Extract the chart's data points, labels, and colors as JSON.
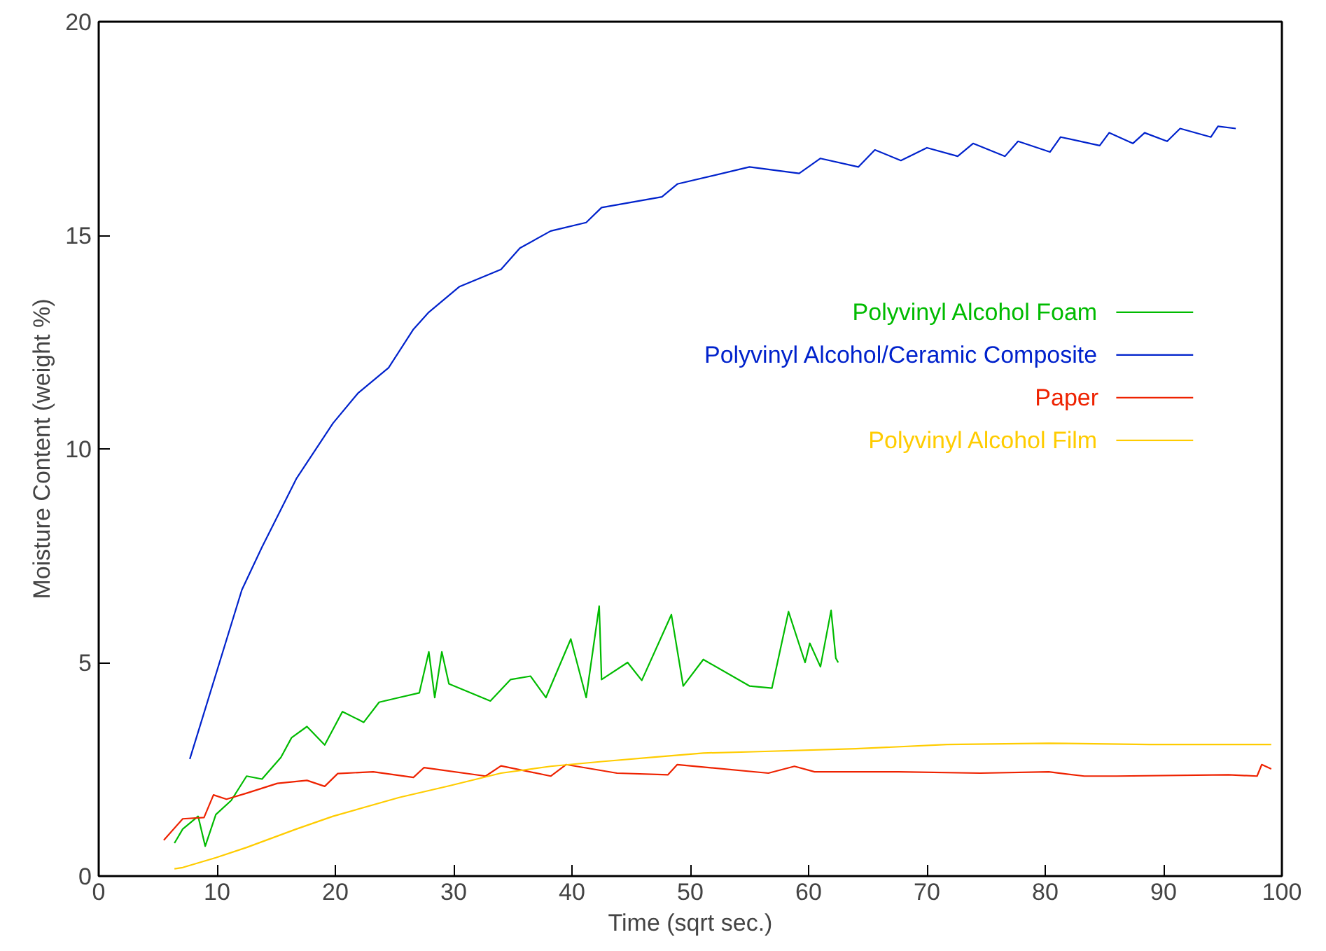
{
  "chart_data": {
    "type": "line",
    "xlabel": "Time (sqrt sec.)",
    "ylabel": "Moisture Content (weight %)",
    "xlim": [
      0,
      100
    ],
    "ylim": [
      0,
      20
    ],
    "xticks": [
      0,
      10,
      20,
      30,
      40,
      50,
      60,
      70,
      80,
      90,
      100
    ],
    "yticks": [
      0,
      5,
      10,
      15,
      20
    ],
    "grid": false,
    "legend": "right",
    "series": [
      {
        "name": "Polyvinyl Alcohol Foam",
        "color": "#00bb00",
        "x": [
          6.4,
          7.1,
          8.4,
          9,
          9.9,
          11.2,
          12.5,
          13.8,
          15.4,
          16.3,
          17.6,
          19.1,
          20.6,
          22.4,
          23.7,
          25.4,
          27.1,
          27.9,
          28.4,
          29,
          29.6,
          33.1,
          34.8,
          36.5,
          37.8,
          39.9,
          41.2,
          42.3,
          42.5,
          44.7,
          45.9,
          48.4,
          49.4,
          51.1,
          55,
          56.9,
          58.3,
          59.7,
          60.1,
          61,
          61.9,
          62.3,
          62.5
        ],
        "values": [
          0.77,
          1.1,
          1.4,
          0.7,
          1.44,
          1.77,
          2.34,
          2.27,
          2.78,
          3.24,
          3.5,
          3.07,
          3.85,
          3.6,
          4.07,
          4.18,
          4.29,
          5.25,
          4.18,
          5.25,
          4.5,
          4.1,
          4.6,
          4.68,
          4.18,
          5.55,
          4.18,
          6.32,
          4.6,
          5.0,
          4.58,
          6.12,
          4.45,
          5.07,
          4.45,
          4.4,
          6.19,
          5.0,
          5.45,
          4.9,
          6.22,
          5.1,
          5.0
        ]
      },
      {
        "name": "Polyvinyl Alcohol/Ceramic Composite",
        "color": "#0022cc",
        "x": [
          7.7,
          12.1,
          13.8,
          16.7,
          19.8,
          21.9,
          24.5,
          26.6,
          27.9,
          30.5,
          34,
          35.6,
          38.2,
          41.2,
          42.5,
          47.6,
          48.9,
          55,
          59.2,
          61,
          64.2,
          65.6,
          67.8,
          70,
          72.6,
          73.9,
          76.6,
          77.7,
          80.4,
          81.3,
          84.6,
          85.4,
          87.4,
          88.4,
          90.3,
          91.4,
          94,
          94.6,
          96.1
        ],
        "values": [
          2.74,
          6.7,
          7.7,
          9.3,
          10.6,
          11.3,
          11.9,
          12.8,
          13.2,
          13.8,
          14.2,
          14.7,
          15.1,
          15.3,
          15.65,
          15.9,
          16.2,
          16.6,
          16.45,
          16.8,
          16.6,
          17.0,
          16.75,
          17.05,
          16.85,
          17.15,
          16.85,
          17.2,
          16.95,
          17.3,
          17.1,
          17.4,
          17.15,
          17.4,
          17.2,
          17.5,
          17.3,
          17.55,
          17.5
        ]
      },
      {
        "name": "Paper",
        "color": "#ee2200",
        "x": [
          5.5,
          7.1,
          8.9,
          9.7,
          10.8,
          12.5,
          15.1,
          17.6,
          19.1,
          20.2,
          23.2,
          26.6,
          27.5,
          32.7,
          34,
          38.2,
          39.5,
          43.8,
          48.1,
          48.9,
          56.6,
          58.8,
          60.5,
          67.6,
          74.5,
          80.3,
          83.3,
          86,
          95.5,
          97.9,
          98.3,
          99.1
        ],
        "values": [
          0.84,
          1.34,
          1.37,
          1.9,
          1.8,
          1.94,
          2.17,
          2.24,
          2.1,
          2.4,
          2.44,
          2.31,
          2.54,
          2.34,
          2.58,
          2.34,
          2.61,
          2.41,
          2.37,
          2.61,
          2.41,
          2.57,
          2.44,
          2.44,
          2.41,
          2.44,
          2.34,
          2.34,
          2.37,
          2.34,
          2.61,
          2.51
        ]
      },
      {
        "name": "Polyvinyl Alcohol Film",
        "color": "#ffcc00",
        "x": [
          6.4,
          7.1,
          9.9,
          12.5,
          16.7,
          19.8,
          25.4,
          29.6,
          34,
          38.2,
          42.5,
          46.8,
          51.1,
          55.3,
          64,
          71.7,
          80.3,
          88.8,
          99.1
        ],
        "values": [
          0.17,
          0.2,
          0.43,
          0.67,
          1.1,
          1.4,
          1.84,
          2.11,
          2.41,
          2.57,
          2.68,
          2.78,
          2.88,
          2.91,
          2.98,
          3.08,
          3.11,
          3.08,
          3.08
        ]
      }
    ]
  }
}
